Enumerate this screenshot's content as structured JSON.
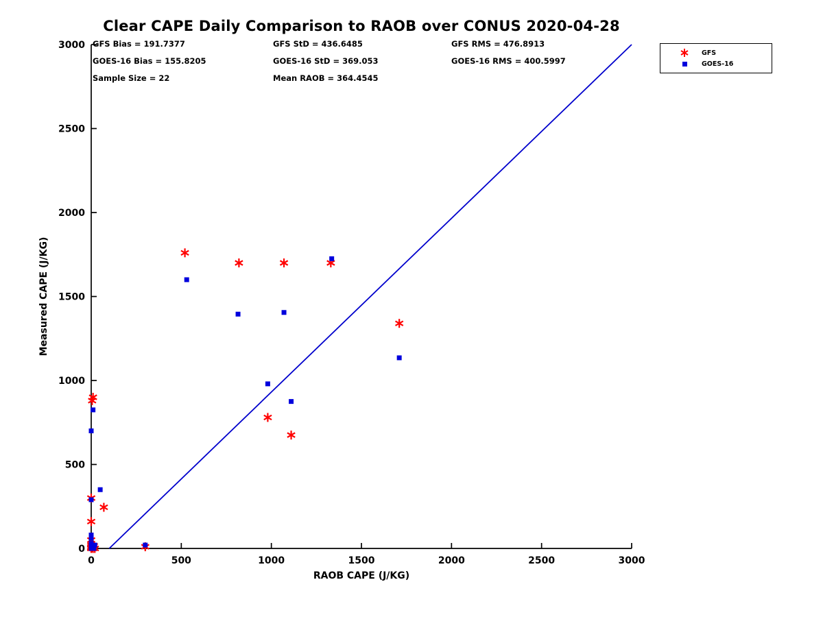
{
  "title": "Clear CAPE Daily Comparison to RAOB over CONUS 2020-04-28",
  "stats": {
    "rows": [
      [
        "GFS Bias = 191.7377",
        "GFS StD = 436.6485",
        "GFS RMS = 476.8913"
      ],
      [
        "GOES-16 Bias = 155.8205",
        "GOES-16 StD = 369.053",
        "GOES-16 RMS = 400.5997"
      ],
      [
        "Sample Size = 22",
        "Mean RAOB = 364.4545"
      ]
    ]
  },
  "legend": {
    "items": [
      {
        "label": "GFS",
        "marker": "asterisk",
        "color": "#FF0000"
      },
      {
        "label": "GOES-16",
        "marker": "square",
        "color": "#0000DD"
      }
    ]
  },
  "chart_data": {
    "type": "scatter",
    "title": "Clear CAPE Daily Comparison to RAOB over CONUS 2020-04-28",
    "xlabel": "RAOB CAPE (J/KG)",
    "ylabel": "Measured CAPE (J/KG)",
    "xlim": [
      0,
      3000
    ],
    "ylim": [
      0,
      3000
    ],
    "xticks": [
      0,
      500,
      1000,
      1500,
      2000,
      2500,
      3000
    ],
    "yticks": [
      0,
      500,
      1000,
      1500,
      2000,
      2500,
      3000
    ],
    "grid": false,
    "legend_position": "top-right-outside",
    "reference_line": {
      "x": [
        100,
        3000
      ],
      "y": [
        0,
        3000
      ],
      "color": "#0000CC"
    },
    "series": [
      {
        "name": "GFS",
        "marker": "asterisk",
        "color": "#FF0000",
        "points": [
          [
            520,
            1760
          ],
          [
            820,
            1700
          ],
          [
            1070,
            1700
          ],
          [
            1330,
            1700
          ],
          [
            1710,
            1340
          ],
          [
            980,
            780
          ],
          [
            1110,
            675
          ],
          [
            10,
            900
          ],
          [
            5,
            880
          ],
          [
            0,
            300
          ],
          [
            70,
            245
          ],
          [
            0,
            160
          ],
          [
            0,
            50
          ],
          [
            300,
            10
          ],
          [
            0,
            0
          ],
          [
            5,
            5
          ],
          [
            10,
            0
          ],
          [
            0,
            10
          ],
          [
            15,
            15
          ],
          [
            0,
            20
          ],
          [
            20,
            0
          ],
          [
            0,
            5
          ]
        ]
      },
      {
        "name": "GOES-16",
        "marker": "square",
        "color": "#0000DD",
        "points": [
          [
            530,
            1600
          ],
          [
            815,
            1395
          ],
          [
            1070,
            1405
          ],
          [
            1335,
            1725
          ],
          [
            1710,
            1135
          ],
          [
            980,
            980
          ],
          [
            1110,
            875
          ],
          [
            10,
            825
          ],
          [
            0,
            700
          ],
          [
            50,
            350
          ],
          [
            0,
            290
          ],
          [
            0,
            80
          ],
          [
            0,
            60
          ],
          [
            300,
            20
          ],
          [
            0,
            30
          ],
          [
            5,
            5
          ],
          [
            10,
            10
          ],
          [
            0,
            0
          ],
          [
            15,
            0
          ],
          [
            20,
            20
          ],
          [
            0,
            15
          ],
          [
            5,
            0
          ]
        ]
      }
    ]
  }
}
